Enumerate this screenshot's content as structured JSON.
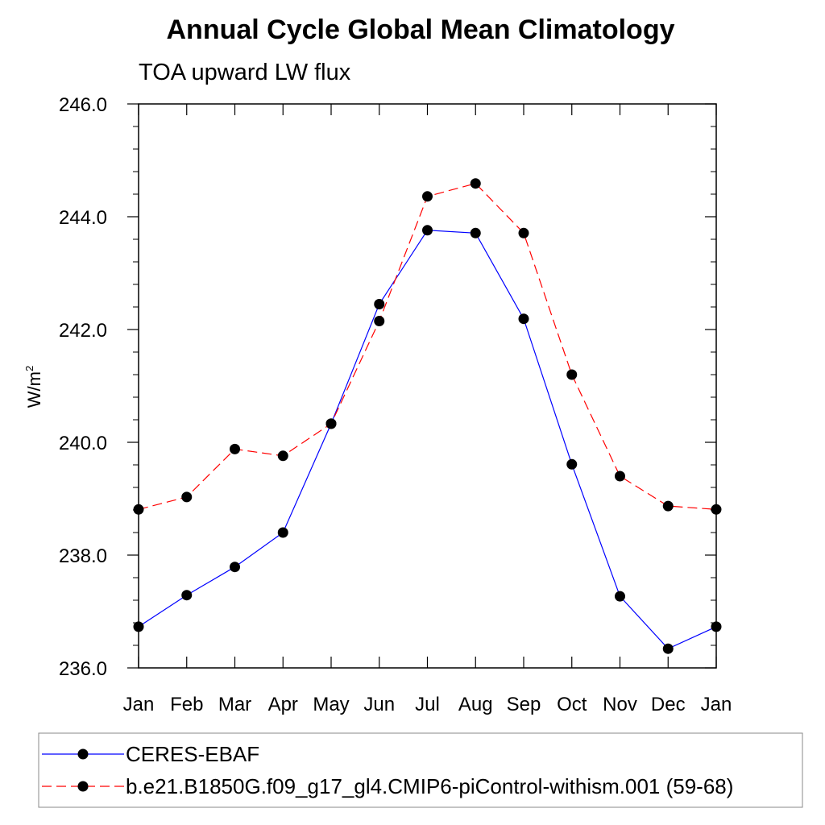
{
  "chart_data": {
    "type": "line",
    "title": "Annual Cycle Global Mean Climatology",
    "subtitle": "TOA upward LW flux",
    "ylabel": "W/m",
    "ylabel_superscript": "2",
    "xlabel": "",
    "categories": [
      "Jan",
      "Feb",
      "Mar",
      "Apr",
      "May",
      "Jun",
      "Jul",
      "Aug",
      "Sep",
      "Oct",
      "Nov",
      "Dec",
      "Jan"
    ],
    "ylim": [
      236.0,
      246.0
    ],
    "yticks": [
      "236.0",
      "238.0",
      "240.0",
      "242.0",
      "244.0",
      "246.0"
    ],
    "ytick_values": [
      236,
      238,
      240,
      242,
      244,
      246
    ],
    "grid": false,
    "legend_position": "bottom",
    "series": [
      {
        "name": "CERES-EBAF",
        "color": "#0000ff",
        "line_style": "solid",
        "marker": "filled-circle",
        "values": [
          236.73,
          237.29,
          237.79,
          238.4,
          240.33,
          242.45,
          243.76,
          243.71,
          242.19,
          239.61,
          237.27,
          236.34,
          236.73
        ]
      },
      {
        "name": "b.e21.B1850G.f09_g17_gl4.CMIP6-piControl-withism.001 (59-68)",
        "color": "#ff0000",
        "line_style": "dashed",
        "marker": "filled-circle",
        "values": [
          238.81,
          239.03,
          239.88,
          239.76,
          240.33,
          242.15,
          244.36,
          244.59,
          243.71,
          241.2,
          239.4,
          238.87,
          238.81
        ]
      }
    ]
  }
}
